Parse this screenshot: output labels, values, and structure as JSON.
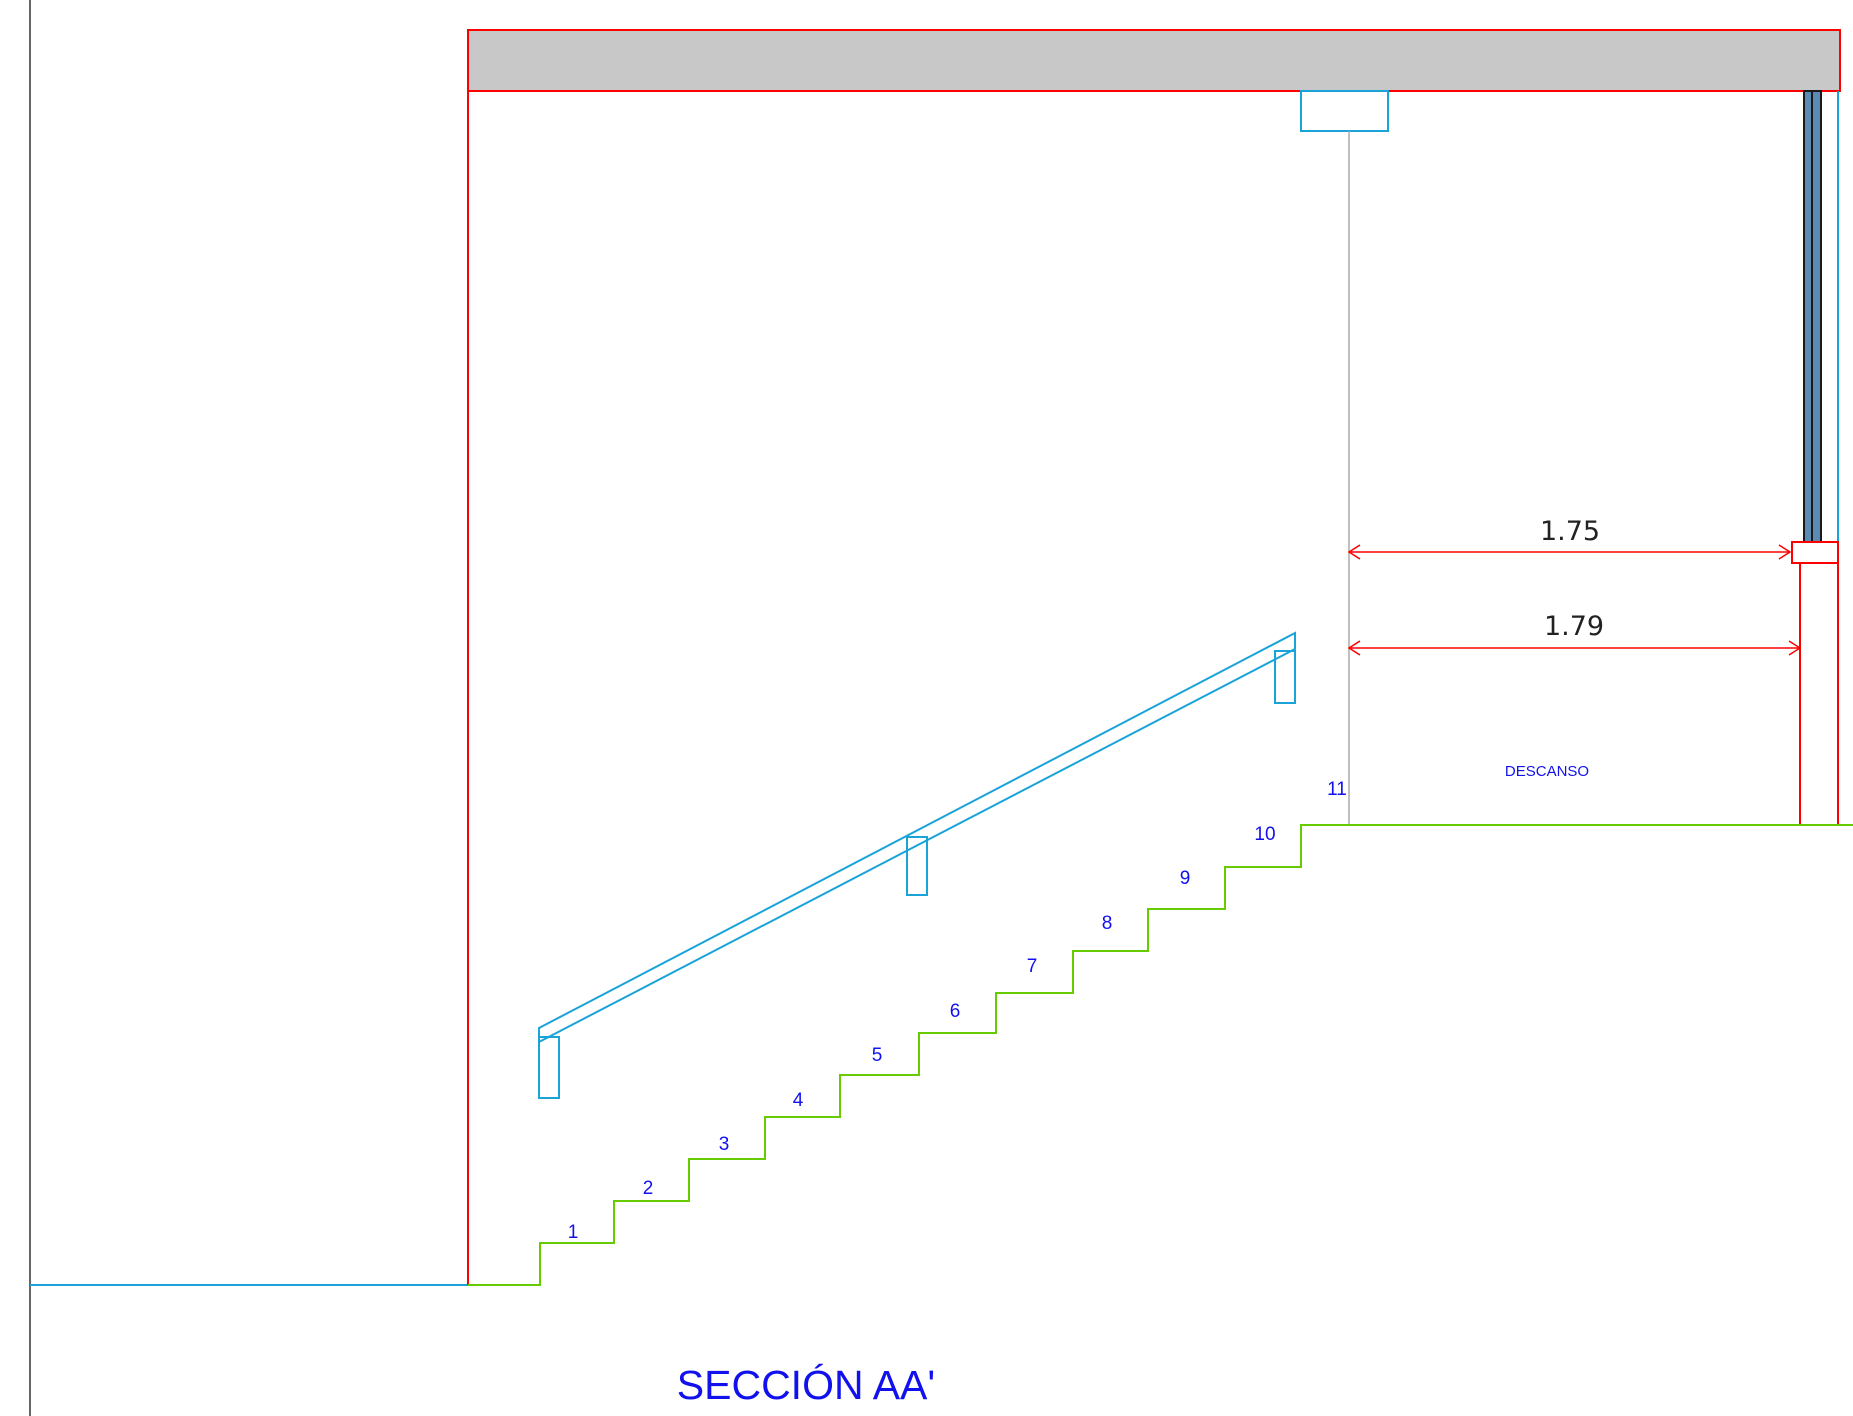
{
  "title": "SECCIÓN AA'",
  "landing_label": "DESCANSO",
  "dimensions": {
    "upper": "1.75",
    "lower": "1.79"
  },
  "step_numbers": [
    "1",
    "2",
    "3",
    "4",
    "5",
    "6",
    "7",
    "8",
    "9",
    "10",
    "11"
  ],
  "colors": {
    "wall": "#ff0000",
    "stair": "#66cc00",
    "railing": "#1aa3d9",
    "text": "#1111ee",
    "slab": "#c8c8c8",
    "dimension": "#ff0000"
  }
}
